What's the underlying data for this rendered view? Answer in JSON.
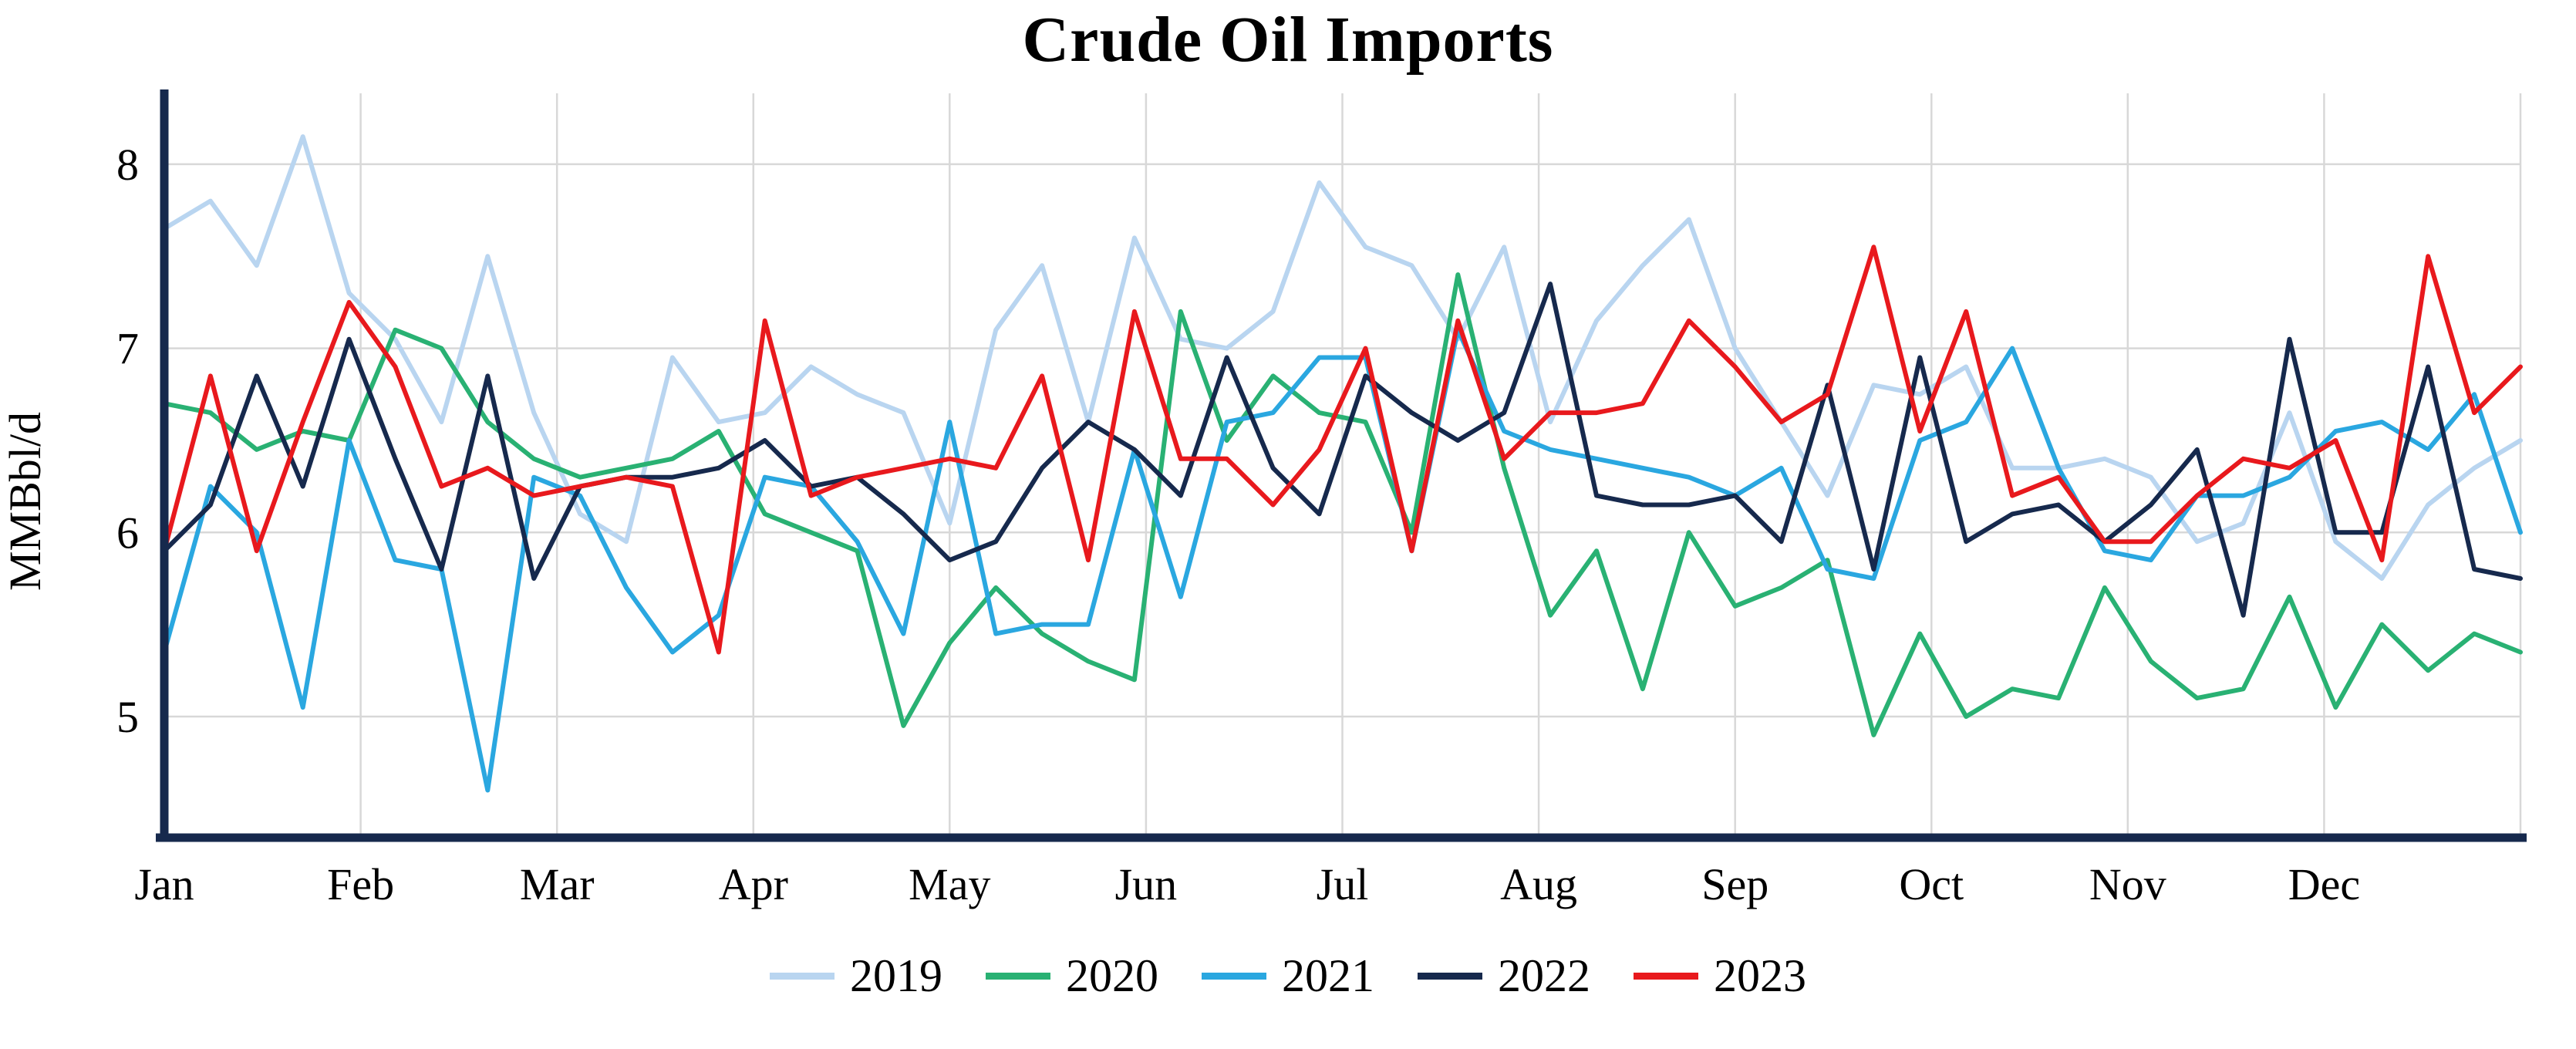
{
  "chart_data": {
    "type": "line",
    "title": "Crude Oil Imports",
    "ylabel": "MMBbl/d",
    "xlabel": "",
    "x_unit": "weekly observations, Jan through Dec",
    "categories": [
      "Jan",
      "Feb",
      "Mar",
      "Apr",
      "May",
      "Jun",
      "Jul",
      "Aug",
      "Sep",
      "Oct",
      "Nov",
      "Dec"
    ],
    "yticks": [
      5,
      6,
      7,
      8
    ],
    "ylim": [
      4.35,
      8.35
    ],
    "grid": true,
    "legend_position": "bottom",
    "axis_color": "#16294d",
    "grid_color": "#d8d8d8",
    "series": [
      {
        "name": "2019",
        "color": "#b9d5f0",
        "values": [
          7.65,
          7.8,
          7.45,
          8.15,
          7.3,
          7.05,
          6.6,
          7.5,
          6.65,
          6.1,
          5.95,
          6.95,
          6.6,
          6.65,
          6.9,
          6.75,
          6.65,
          6.05,
          7.1,
          7.45,
          6.6,
          7.6,
          7.05,
          7.0,
          7.2,
          7.9,
          7.55,
          7.45,
          7.05,
          7.55,
          6.6,
          7.15,
          7.45,
          7.7,
          7.0,
          6.6,
          6.2,
          6.8,
          6.75,
          6.9,
          6.35,
          6.35,
          6.4,
          6.3,
          5.95,
          6.05,
          6.65,
          5.95,
          5.75,
          6.15,
          6.35,
          6.5
        ]
      },
      {
        "name": "2020",
        "color": "#29b173",
        "values": [
          6.7,
          6.65,
          6.45,
          6.55,
          6.5,
          7.1,
          7.0,
          6.6,
          6.4,
          6.3,
          6.35,
          6.4,
          6.55,
          6.1,
          6.0,
          5.9,
          4.95,
          5.4,
          5.7,
          5.45,
          5.3,
          5.2,
          7.2,
          6.5,
          6.85,
          6.65,
          6.6,
          6.0,
          7.4,
          6.35,
          5.55,
          5.9,
          5.15,
          6.0,
          5.6,
          5.7,
          5.85,
          4.9,
          5.45,
          5.0,
          5.15,
          5.1,
          5.7,
          5.3,
          5.1,
          5.15,
          5.65,
          5.05,
          5.5,
          5.25,
          5.45,
          5.35
        ]
      },
      {
        "name": "2021",
        "color": "#2aa7e0",
        "values": [
          5.35,
          6.25,
          6.0,
          5.05,
          6.5,
          5.85,
          5.8,
          4.6,
          6.3,
          6.2,
          5.7,
          5.35,
          5.55,
          6.3,
          6.25,
          5.95,
          5.45,
          6.6,
          5.45,
          5.5,
          5.5,
          6.45,
          5.65,
          6.6,
          6.65,
          6.95,
          6.95,
          5.9,
          7.1,
          6.55,
          6.45,
          6.4,
          6.35,
          6.3,
          6.2,
          6.35,
          5.8,
          5.75,
          6.5,
          6.6,
          7.0,
          6.35,
          5.9,
          5.85,
          6.2,
          6.2,
          6.3,
          6.55,
          6.6,
          6.45,
          6.75,
          6.0
        ]
      },
      {
        "name": "2022",
        "color": "#16294d",
        "values": [
          5.9,
          6.15,
          6.85,
          6.25,
          7.05,
          6.4,
          5.8,
          6.85,
          5.75,
          6.25,
          6.3,
          6.3,
          6.35,
          6.5,
          6.25,
          6.3,
          6.1,
          5.85,
          5.95,
          6.35,
          6.6,
          6.45,
          6.2,
          6.95,
          6.35,
          6.1,
          6.85,
          6.65,
          6.5,
          6.65,
          7.35,
          6.2,
          6.15,
          6.15,
          6.2,
          5.95,
          6.8,
          5.8,
          6.95,
          5.95,
          6.1,
          6.15,
          5.95,
          6.15,
          6.45,
          5.55,
          7.05,
          6.0,
          6.0,
          6.9,
          5.8,
          5.75
        ]
      },
      {
        "name": "2023",
        "color": "#e8191d",
        "values": [
          5.9,
          6.85,
          5.9,
          6.6,
          7.25,
          6.9,
          6.25,
          6.35,
          6.2,
          6.25,
          6.3,
          6.25,
          5.35,
          7.15,
          6.2,
          6.3,
          6.35,
          6.4,
          6.35,
          6.85,
          5.85,
          7.2,
          6.4,
          6.4,
          6.15,
          6.45,
          7.0,
          5.9,
          7.15,
          6.4,
          6.65,
          6.65,
          6.7,
          7.15,
          6.9,
          6.6,
          6.75,
          7.55,
          6.55,
          7.2,
          6.2,
          6.3,
          5.95,
          5.95,
          6.2,
          6.4,
          6.35,
          6.5,
          5.85,
          7.5,
          6.65,
          6.9
        ]
      }
    ]
  }
}
